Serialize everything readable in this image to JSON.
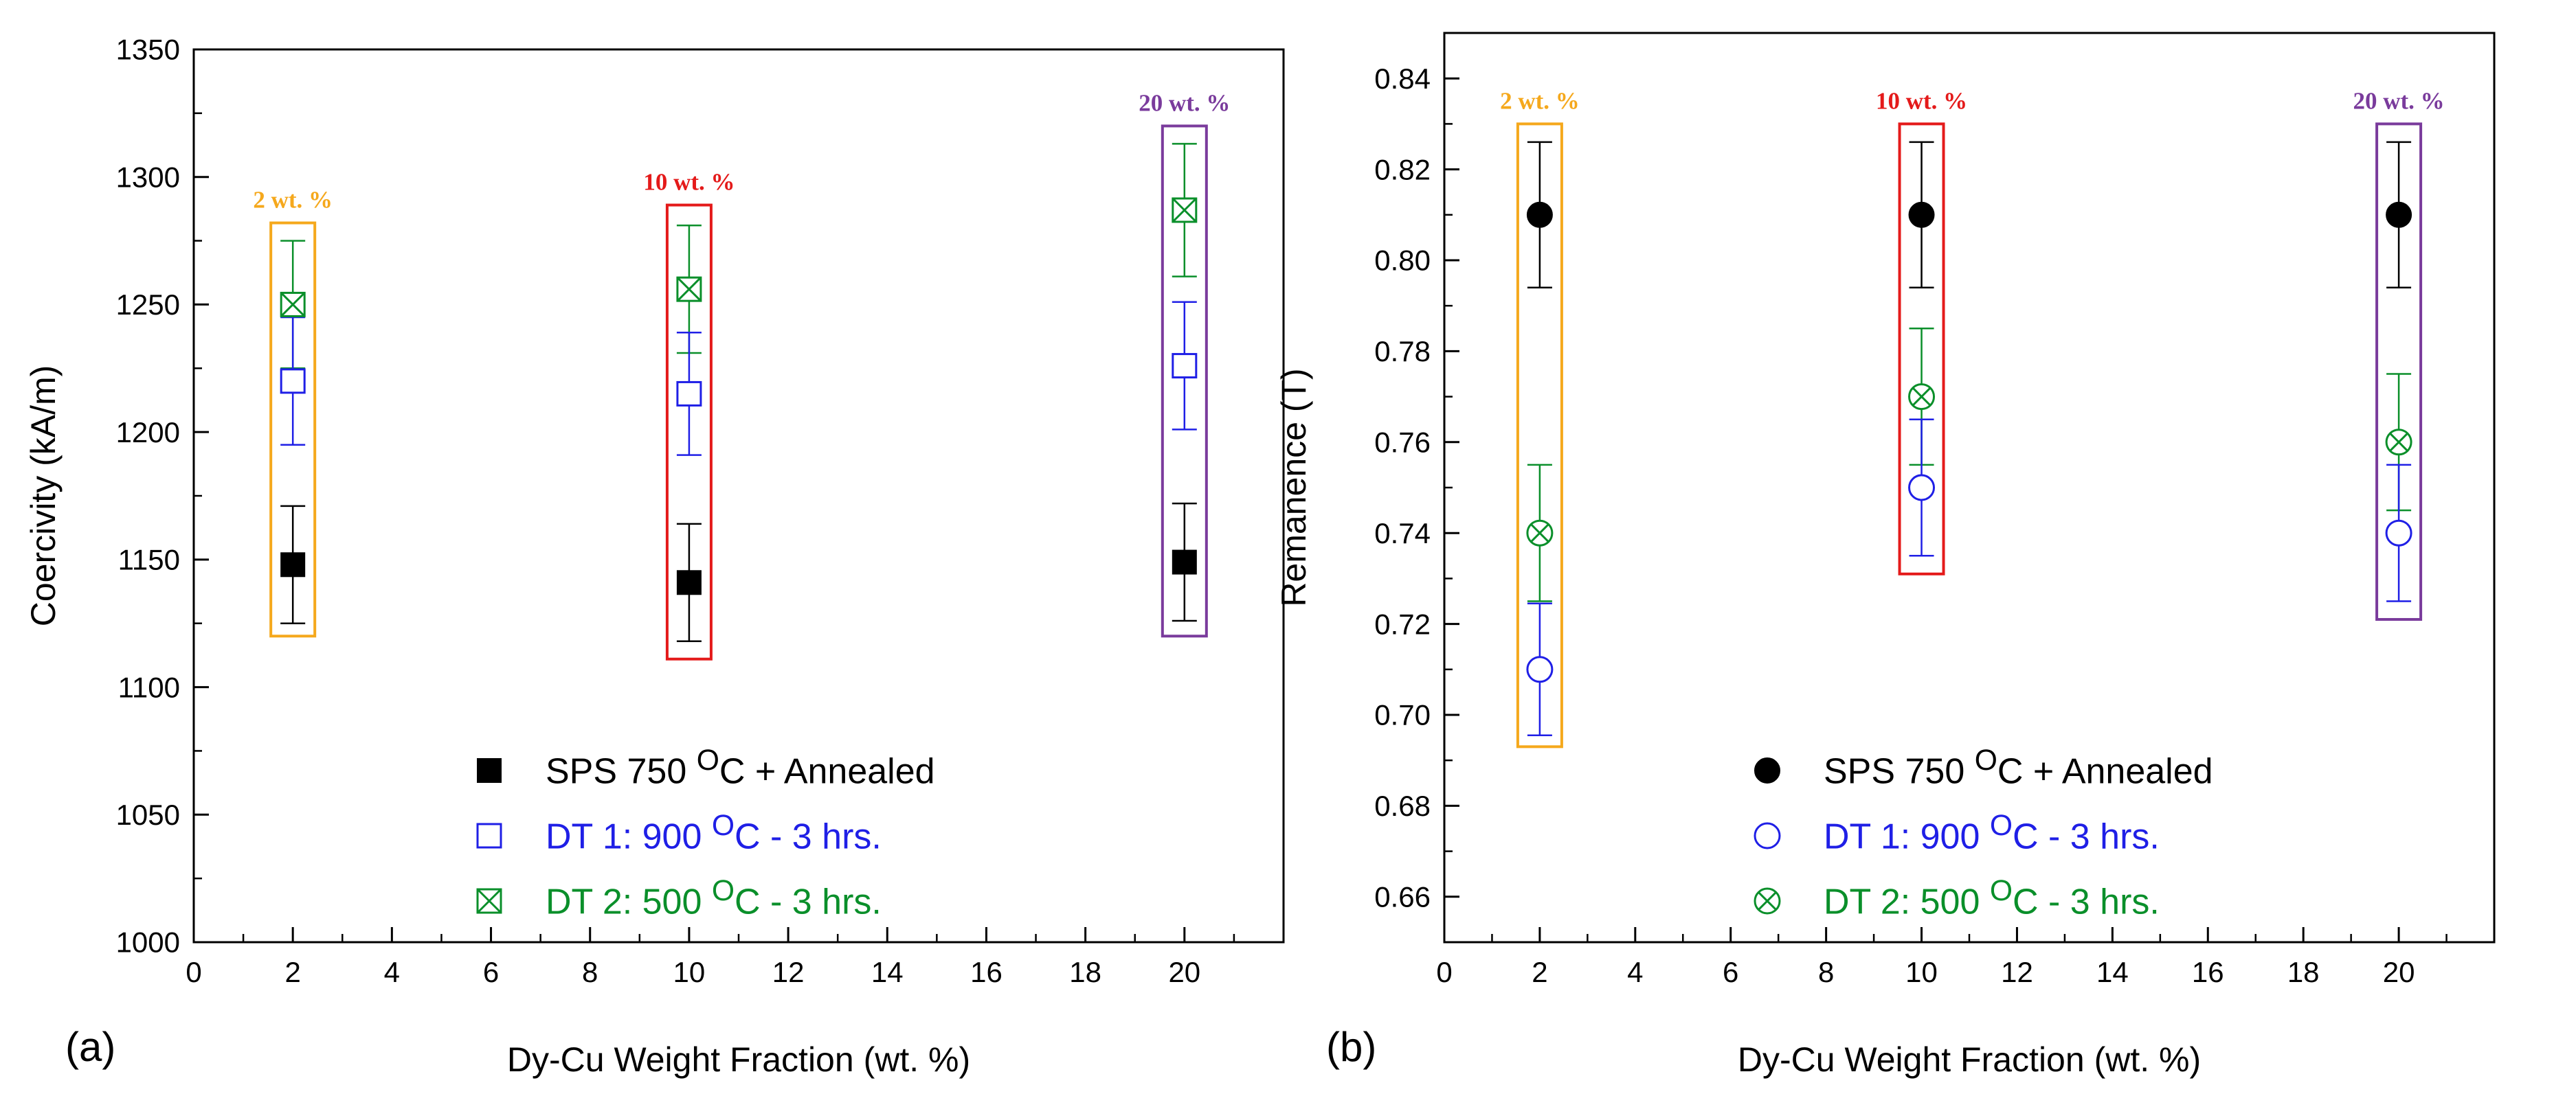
{
  "colors": {
    "black": "#000000",
    "blue": "#1f1fe6",
    "green": "#0a8f2a",
    "orange": "#f5a81c",
    "red": "#e41a1a",
    "purple": "#7a3b9c"
  },
  "chart_data": [
    {
      "type": "scatter",
      "panel_label": "(a)",
      "xlabel": "Dy-Cu Weight Fraction (wt. %)",
      "ylabel": "Coercivity (kA/m)",
      "xlim": [
        0,
        22
      ],
      "ylim": [
        1000,
        1350
      ],
      "x_ticks": [
        0,
        2,
        4,
        6,
        8,
        10,
        12,
        14,
        16,
        18,
        20
      ],
      "x_tick_labels": [
        "0",
        "2",
        "4",
        "6",
        "8",
        "10",
        "12",
        "14",
        "16",
        "18",
        "20"
      ],
      "y_ticks": [
        1000,
        1050,
        1100,
        1150,
        1200,
        1250,
        1300,
        1350
      ],
      "y_tick_labels": [
        "1000",
        "1050",
        "1100",
        "1150",
        "1200",
        "1250",
        "1300",
        "1350"
      ],
      "series": [
        {
          "name": "SPS 750 °C + Annealed",
          "legend_main": "SPS 750 ",
          "legend_sup": "O",
          "legend_tail": "C + Annealed",
          "marker": "filled-square",
          "color_key": "black",
          "x": [
            2,
            10,
            20
          ],
          "y": [
            1148,
            1141,
            1149
          ],
          "err": [
            23,
            23,
            23
          ]
        },
        {
          "name": "DT 1: 900 °C - 3 hrs.",
          "legend_main": "DT 1: 900 ",
          "legend_sup": "O",
          "legend_tail": "C - 3 hrs.",
          "marker": "open-square",
          "color_key": "blue",
          "x": [
            2,
            10,
            20
          ],
          "y": [
            1220,
            1215,
            1226
          ],
          "err": [
            25,
            24,
            25
          ]
        },
        {
          "name": "DT 2: 500 °C - 3 hrs.",
          "legend_main": "DT 2: 500 ",
          "legend_sup": "O",
          "legend_tail": "C - 3 hrs.",
          "marker": "crossed-square",
          "color_key": "green",
          "x": [
            2,
            10,
            20
          ],
          "y": [
            1250,
            1256,
            1287
          ],
          "err": [
            25,
            25,
            26
          ]
        }
      ],
      "annotations": [
        {
          "text": "2 wt. %",
          "x": 2,
          "color_key": "orange",
          "y_bottom": 1120,
          "y_top": 1282
        },
        {
          "text": "10 wt. %",
          "x": 10,
          "color_key": "red",
          "y_bottom": 1111,
          "y_top": 1289
        },
        {
          "text": "20 wt. %",
          "x": 20,
          "color_key": "purple",
          "y_bottom": 1120,
          "y_top": 1320
        }
      ],
      "legend_position": "bottom-center"
    },
    {
      "type": "scatter",
      "panel_label": "(b)",
      "xlabel": "Dy-Cu Weight Fraction (wt. %)",
      "ylabel": "Remanence (T)",
      "xlim": [
        0,
        22
      ],
      "ylim": [
        0.65,
        0.85
      ],
      "x_ticks": [
        0,
        2,
        4,
        6,
        8,
        10,
        12,
        14,
        16,
        18,
        20
      ],
      "x_tick_labels": [
        "0",
        "2",
        "4",
        "6",
        "8",
        "10",
        "12",
        "14",
        "16",
        "18",
        "20"
      ],
      "y_ticks": [
        0.66,
        0.68,
        0.7,
        0.72,
        0.74,
        0.76,
        0.78,
        0.8,
        0.82,
        0.84
      ],
      "y_tick_labels": [
        "0.66",
        "0.68",
        "0.70",
        "0.72",
        "0.74",
        "0.76",
        "0.78",
        "0.80",
        "0.82",
        "0.84"
      ],
      "series": [
        {
          "name": "SPS 750 °C + Annealed",
          "legend_main": "SPS 750 ",
          "legend_sup": "O",
          "legend_tail": "C + Annealed",
          "marker": "filled-circle",
          "color_key": "black",
          "x": [
            2,
            10,
            20
          ],
          "y": [
            0.81,
            0.81,
            0.81
          ],
          "err": [
            0.016,
            0.016,
            0.016
          ]
        },
        {
          "name": "DT 1: 900 °C - 3 hrs.",
          "legend_main": "DT 1: 900 ",
          "legend_sup": "O",
          "legend_tail": "C - 3 hrs.",
          "marker": "open-circle",
          "color_key": "blue",
          "x": [
            2,
            10,
            20
          ],
          "y": [
            0.71,
            0.75,
            0.74
          ],
          "err": [
            0.0145,
            0.015,
            0.015
          ]
        },
        {
          "name": "DT 2: 500 °C - 3 hrs.",
          "legend_main": "DT 2: 500 ",
          "legend_sup": "O",
          "legend_tail": "C - 3 hrs.",
          "marker": "crossed-circle",
          "color_key": "green",
          "x": [
            2,
            10,
            20
          ],
          "y": [
            0.74,
            0.77,
            0.76
          ],
          "err": [
            0.015,
            0.015,
            0.015
          ]
        }
      ],
      "annotations": [
        {
          "text": "2 wt. %",
          "x": 2,
          "color_key": "orange",
          "y_bottom": 0.693,
          "y_top": 0.83
        },
        {
          "text": "10 wt. %",
          "x": 10,
          "color_key": "red",
          "y_bottom": 0.731,
          "y_top": 0.83
        },
        {
          "text": "20 wt. %",
          "x": 20,
          "color_key": "purple",
          "y_bottom": 0.721,
          "y_top": 0.83
        }
      ],
      "legend_position": "bottom-center"
    }
  ]
}
